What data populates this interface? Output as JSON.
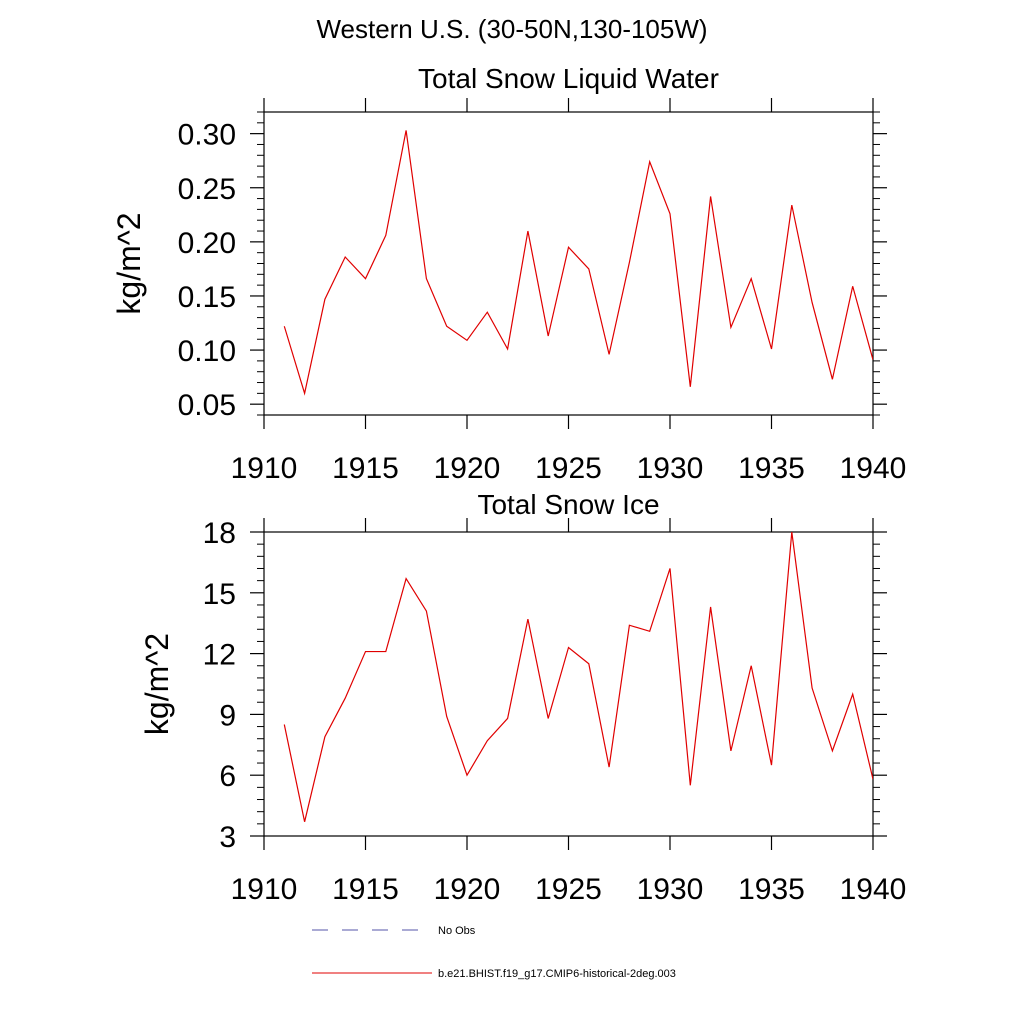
{
  "page": {
    "title": "Western U.S. (30-50N,130-105W)"
  },
  "chart_data": [
    {
      "type": "line",
      "title": "Total Snow Liquid Water",
      "xlabel": "",
      "ylabel": "kg/m^2",
      "xlim": [
        1910,
        1940
      ],
      "ylim": [
        0.04,
        0.32
      ],
      "xticks": [
        1910,
        1915,
        1920,
        1925,
        1930,
        1935,
        1940
      ],
      "xtick_labels": [
        "1910",
        "1915",
        "1920",
        "1925",
        "1930",
        "1935",
        "1940"
      ],
      "yticks": [
        0.05,
        0.1,
        0.15,
        0.2,
        0.25,
        0.3
      ],
      "ytick_labels": [
        "0.05",
        "0.10",
        "0.15",
        "0.20",
        "0.25",
        "0.30"
      ],
      "grid": false,
      "x": [
        1911,
        1912,
        1913,
        1914,
        1915,
        1916,
        1917,
        1918,
        1919,
        1920,
        1921,
        1922,
        1923,
        1924,
        1925,
        1926,
        1927,
        1928,
        1929,
        1930,
        1931,
        1932,
        1933,
        1934,
        1935,
        1936,
        1937,
        1938,
        1939,
        1940
      ],
      "series": [
        {
          "name": "b.e21.BHIST.f19_g17.CMIP6-historical-2deg.003",
          "color": "#e00000",
          "values": [
            0.122,
            0.06,
            0.147,
            0.186,
            0.166,
            0.206,
            0.303,
            0.166,
            0.122,
            0.109,
            0.135,
            0.101,
            0.21,
            0.113,
            0.195,
            0.175,
            0.096,
            0.181,
            0.274,
            0.226,
            0.066,
            0.242,
            0.121,
            0.166,
            0.101,
            0.234,
            0.144,
            0.073,
            0.159,
            0.091
          ]
        }
      ]
    },
    {
      "type": "line",
      "title": "Total Snow Ice",
      "xlabel": "",
      "ylabel": "kg/m^2",
      "xlim": [
        1910,
        1940
      ],
      "ylim": [
        3,
        18
      ],
      "xticks": [
        1910,
        1915,
        1920,
        1925,
        1930,
        1935,
        1940
      ],
      "xtick_labels": [
        "1910",
        "1915",
        "1920",
        "1925",
        "1930",
        "1935",
        "1940"
      ],
      "yticks": [
        3,
        6,
        9,
        12,
        15,
        18
      ],
      "ytick_labels": [
        "3",
        "6",
        "9",
        "12",
        "15",
        "18"
      ],
      "grid": false,
      "x": [
        1911,
        1912,
        1913,
        1914,
        1915,
        1916,
        1917,
        1918,
        1919,
        1920,
        1921,
        1922,
        1923,
        1924,
        1925,
        1926,
        1927,
        1928,
        1929,
        1930,
        1931,
        1932,
        1933,
        1934,
        1935,
        1936,
        1937,
        1938,
        1939,
        1940
      ],
      "series": [
        {
          "name": "b.e21.BHIST.f19_g17.CMIP6-historical-2deg.003",
          "color": "#e00000",
          "values": [
            8.5,
            3.7,
            7.9,
            9.8,
            12.1,
            12.1,
            15.7,
            14.1,
            8.9,
            6.0,
            7.7,
            8.8,
            13.7,
            8.8,
            12.3,
            11.5,
            6.4,
            13.4,
            13.1,
            16.2,
            5.5,
            14.3,
            7.2,
            11.4,
            6.5,
            18.0,
            10.3,
            7.2,
            10.0,
            5.8
          ]
        }
      ]
    }
  ],
  "legend": {
    "placement": "bottom",
    "entries": [
      {
        "label": "No Obs",
        "color": "#5555aa",
        "style": "dashed"
      },
      {
        "label": "b.e21.BHIST.f19_g17.CMIP6-historical-2deg.003",
        "color": "#e00000",
        "style": "solid"
      }
    ]
  }
}
